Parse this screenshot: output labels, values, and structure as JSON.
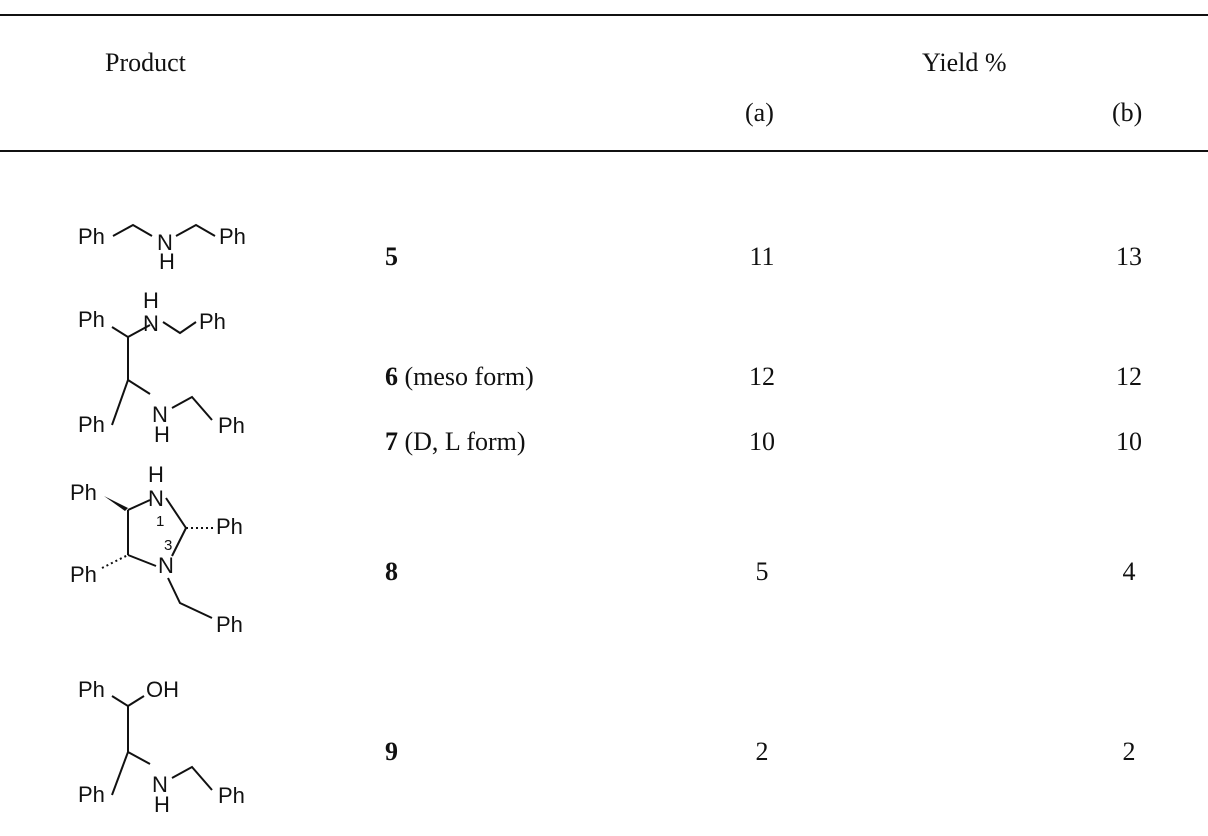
{
  "table": {
    "header": {
      "product": "Product",
      "yield": "Yield %",
      "col_a": "(a)",
      "col_b": "(b)"
    },
    "rows": [
      {
        "compound": "5",
        "form": "",
        "yield_a": "11",
        "yield_b": "13"
      },
      {
        "compound": "6",
        "form": " (meso form)",
        "yield_a": "12",
        "yield_b": "12"
      },
      {
        "compound": "7",
        "form": " (D, L form)",
        "yield_a": "10",
        "yield_b": "10"
      },
      {
        "compound": "8",
        "form": "",
        "yield_a": "5",
        "yield_b": "4"
      },
      {
        "compound": "9",
        "form": "",
        "yield_a": "2",
        "yield_b": "2"
      }
    ]
  },
  "structures": {
    "ph": "Ph",
    "n": "N",
    "h": "H",
    "oh": "OH",
    "pos1": "1",
    "pos3": "3"
  }
}
